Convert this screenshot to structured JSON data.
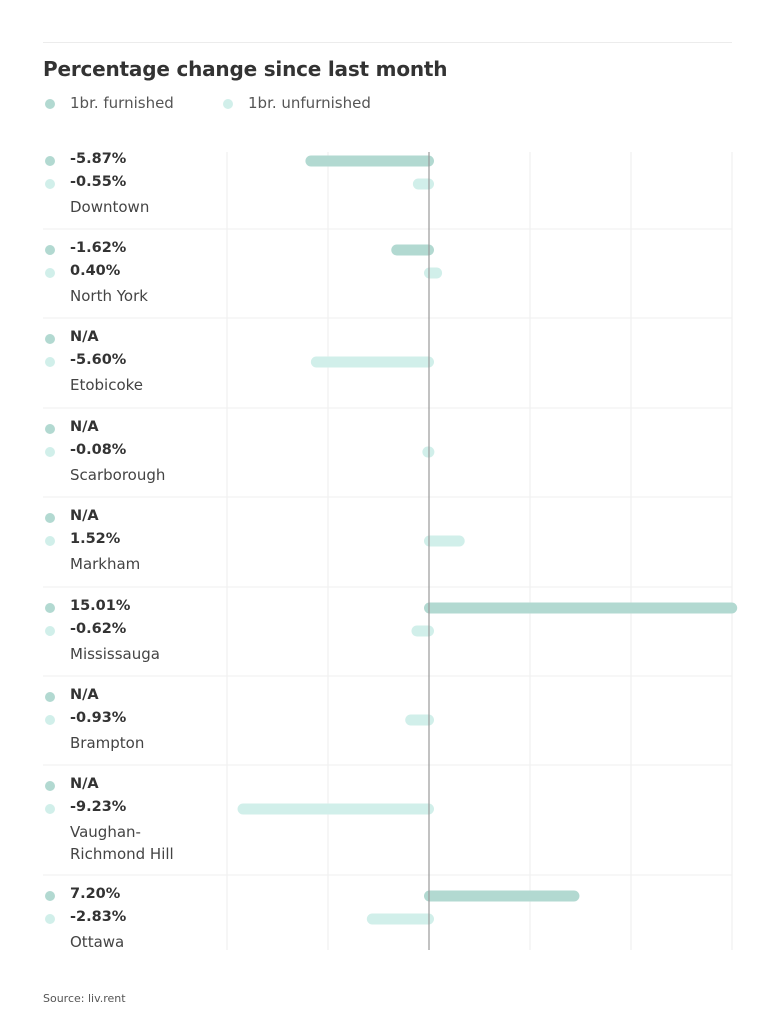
{
  "colors": {
    "furnished": "#b2d9d1",
    "unfurnished": "#d1efea",
    "grid": "#eeeeee",
    "zero_line": "#999999"
  },
  "chart_data": {
    "type": "bar",
    "orientation": "horizontal",
    "title": "Percentage change since last month",
    "xlabel": "",
    "ylabel": "",
    "xlim": [
      -10,
      15
    ],
    "x_grid_step": 5,
    "grid": true,
    "legend_position": "top-left",
    "categories": [
      "Downtown",
      "North York",
      "Etobicoke",
      "Scarborough",
      "Markham",
      "Mississauga",
      "Brampton",
      "Vaughan-\nRichmond Hill",
      "Ottawa"
    ],
    "series": [
      {
        "name": "1br. furnished",
        "values": [
          -5.87,
          -1.62,
          null,
          null,
          null,
          15.01,
          null,
          null,
          7.2
        ],
        "labels": [
          "-5.87%",
          "-1.62%",
          "N/A",
          "N/A",
          "N/A",
          "15.01%",
          "N/A",
          "N/A",
          "7.20%"
        ]
      },
      {
        "name": "1br. unfurnished",
        "values": [
          -0.55,
          0.4,
          -5.6,
          -0.08,
          1.52,
          -0.62,
          -0.93,
          -9.23,
          -2.83
        ],
        "labels": [
          "-0.55%",
          "0.40%",
          "-5.60%",
          "-0.08%",
          "1.52%",
          "-0.62%",
          "-0.93%",
          "-9.23%",
          "-2.83%"
        ]
      }
    ]
  },
  "legend": [
    {
      "label": "1br. furnished"
    },
    {
      "label": "1br. unfurnished"
    }
  ],
  "source": "Source: liv.rent"
}
